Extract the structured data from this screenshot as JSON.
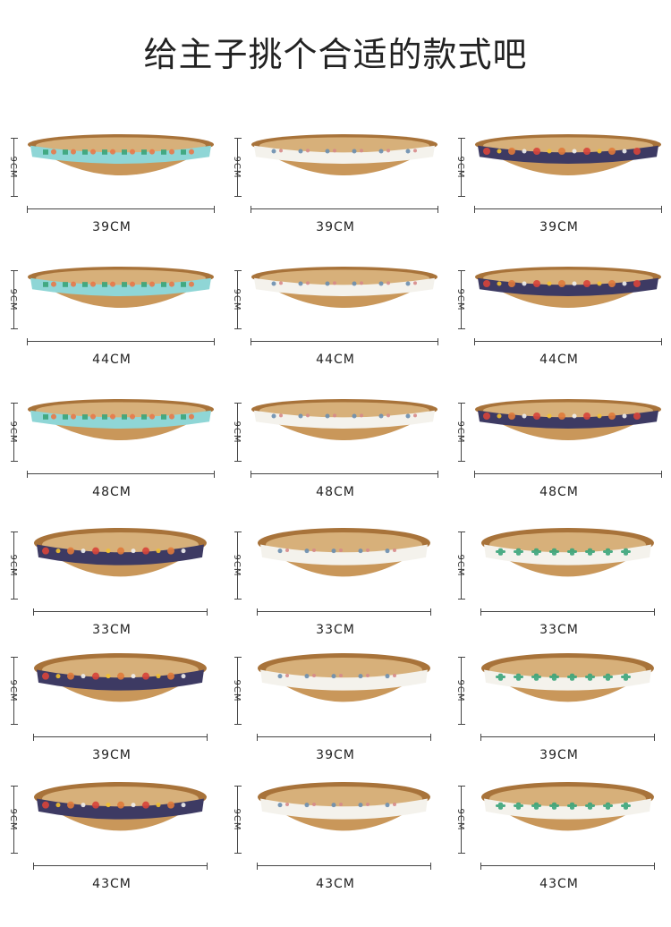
{
  "title": "给主子挑个合适的款式吧",
  "height_label": "9CM",
  "rows": [
    {
      "items": [
        {
          "size": "39CM",
          "band": "blue-cactus",
          "shape": "oval"
        },
        {
          "size": "39CM",
          "band": "white-bunny",
          "shape": "oval"
        },
        {
          "size": "39CM",
          "band": "navy-planets",
          "shape": "oval"
        }
      ]
    },
    {
      "items": [
        {
          "size": "44CM",
          "band": "blue-cactus",
          "shape": "oval"
        },
        {
          "size": "44CM",
          "band": "white-bunny",
          "shape": "oval"
        },
        {
          "size": "44CM",
          "band": "navy-planets",
          "shape": "oval"
        }
      ]
    },
    {
      "items": [
        {
          "size": "48CM",
          "band": "blue-cactus",
          "shape": "oval"
        },
        {
          "size": "48CM",
          "band": "white-bunny",
          "shape": "oval"
        },
        {
          "size": "48CM",
          "band": "navy-planets",
          "shape": "oval"
        }
      ]
    },
    {
      "items": [
        {
          "size": "33CM",
          "band": "navy-planets",
          "shape": "round"
        },
        {
          "size": "33CM",
          "band": "white-bunny",
          "shape": "round"
        },
        {
          "size": "33CM",
          "band": "white-cactus",
          "shape": "round"
        }
      ]
    },
    {
      "items": [
        {
          "size": "39CM",
          "band": "navy-planets",
          "shape": "round"
        },
        {
          "size": "39CM",
          "band": "white-bunny",
          "shape": "round"
        },
        {
          "size": "39CM",
          "band": "white-cactus",
          "shape": "round"
        }
      ]
    },
    {
      "items": [
        {
          "size": "43CM",
          "band": "navy-planets",
          "shape": "round"
        },
        {
          "size": "43CM",
          "band": "white-bunny",
          "shape": "round"
        },
        {
          "size": "43CM",
          "band": "white-cactus",
          "shape": "round"
        }
      ]
    }
  ],
  "colors": {
    "cardboard": "#c9975a",
    "cardboard_dark": "#a8733a",
    "inner": "#d7b07a",
    "blue_band": "#8fd6d6",
    "white_band": "#f4f2ec",
    "navy_band": "#3d3a63",
    "cactus_green": "#3aa57a",
    "planet_red": "#d8443a",
    "planet_yellow": "#f2c12e"
  }
}
